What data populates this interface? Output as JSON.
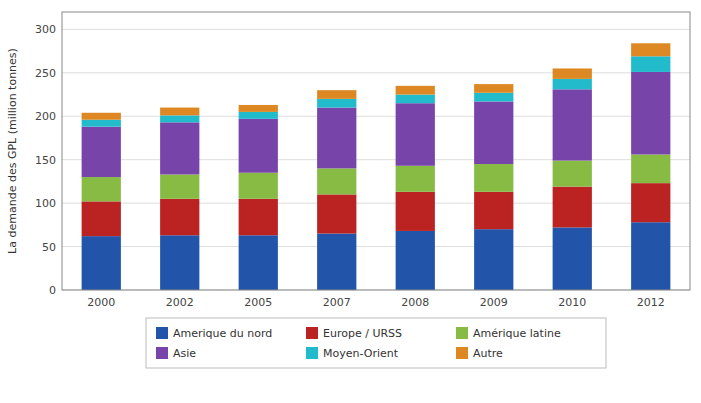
{
  "chart_data": {
    "type": "bar",
    "stacked": true,
    "categories": [
      "2000",
      "2002",
      "2005",
      "2007",
      "2008",
      "2009",
      "2010",
      "2012"
    ],
    "series": [
      {
        "name": "Amerique du nord",
        "color": "#2255AA",
        "values": [
          62,
          63,
          63,
          65,
          68,
          70,
          72,
          78
        ]
      },
      {
        "name": "Europe / URSS",
        "color": "#BB2222",
        "values": [
          40,
          42,
          42,
          45,
          45,
          43,
          47,
          45
        ]
      },
      {
        "name": "Amérique latine",
        "color": "#88BB44",
        "values": [
          28,
          28,
          30,
          30,
          30,
          32,
          30,
          33
        ]
      },
      {
        "name": "Asie",
        "color": "#7744AA",
        "values": [
          58,
          60,
          62,
          70,
          72,
          72,
          82,
          95
        ]
      },
      {
        "name": "Moyen-Orient",
        "color": "#22BBCC",
        "values": [
          8,
          8,
          8,
          10,
          10,
          10,
          12,
          18
        ]
      },
      {
        "name": "Autre",
        "color": "#DD8822",
        "values": [
          8,
          9,
          8,
          10,
          10,
          10,
          12,
          15
        ]
      }
    ],
    "ylabel": "La demande des GPL  (million tonnes)",
    "ylim": [
      0,
      320
    ],
    "yticks": [
      0,
      50,
      100,
      150,
      200,
      250,
      300
    ],
    "grid": true,
    "legend": "bottom"
  }
}
